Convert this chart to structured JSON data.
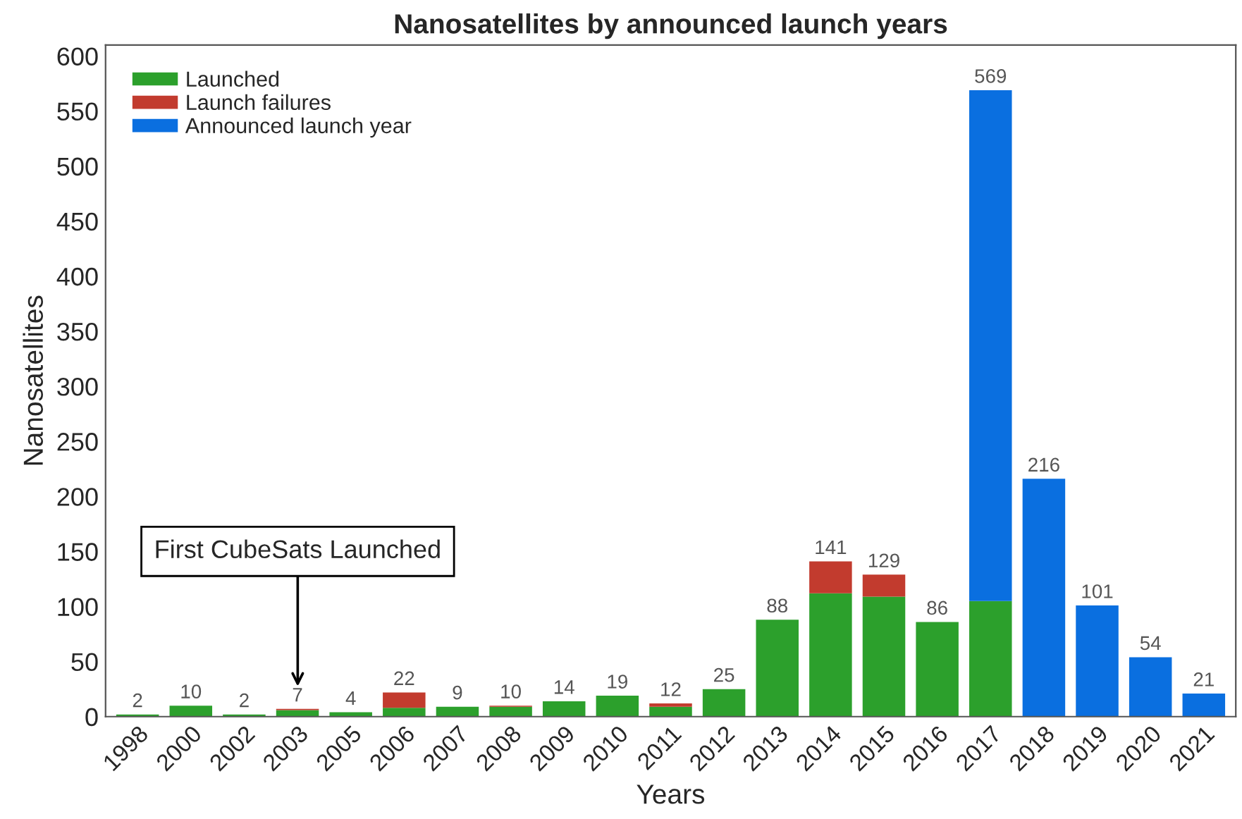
{
  "chart_data": {
    "type": "bar",
    "title": "Nanosatellites by announced launch years",
    "xlabel": "Years",
    "ylabel": "Nanosatellites",
    "categories": [
      "1998",
      "2000",
      "2002",
      "2003",
      "2005",
      "2006",
      "2007",
      "2008",
      "2009",
      "2010",
      "2011",
      "2012",
      "2013",
      "2014",
      "2015",
      "2016",
      "2017",
      "2018",
      "2019",
      "2020",
      "2021"
    ],
    "stacked": true,
    "series": [
      {
        "name": "Launched",
        "color": "#2ca02c",
        "values": [
          2,
          10,
          2,
          6,
          4,
          8,
          9,
          9,
          14,
          19,
          9,
          25,
          88,
          112,
          109,
          86,
          105,
          null,
          null,
          null,
          null
        ]
      },
      {
        "name": "Launch failures",
        "color": "#c23b2e",
        "values": [
          null,
          null,
          null,
          1,
          null,
          14,
          null,
          1,
          null,
          null,
          3,
          null,
          null,
          29,
          20,
          null,
          null,
          null,
          null,
          null,
          null
        ]
      },
      {
        "name": "Announced launch year",
        "color": "#0a6fe0",
        "values": [
          null,
          null,
          null,
          null,
          null,
          null,
          null,
          null,
          null,
          null,
          null,
          null,
          null,
          null,
          null,
          null,
          464,
          216,
          101,
          54,
          21
        ]
      }
    ],
    "totals": [
      "2",
      "10",
      "2",
      "7",
      "4",
      "22",
      "9",
      "10",
      "14",
      "19",
      "12",
      "25",
      "88",
      "141",
      "129",
      "86",
      "569",
      "216",
      "101",
      "54",
      "21"
    ],
    "ylim": [
      0,
      610
    ],
    "yticks": [
      0,
      50,
      100,
      150,
      200,
      250,
      300,
      350,
      400,
      450,
      500,
      550,
      600
    ],
    "grid": false,
    "legend": "top left",
    "annotations": [
      "First CubeSats Launched"
    ]
  }
}
